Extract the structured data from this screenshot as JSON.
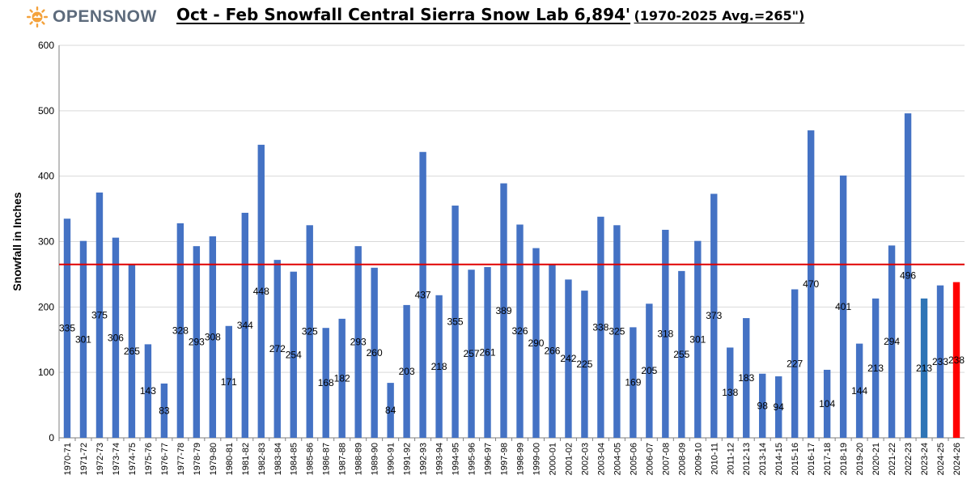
{
  "header": {
    "logo_text": "OPENSNOW",
    "title_main": "Oct - Feb Snowfall Central Sierra Snow Lab 6,894'",
    "title_sub": "(1970-2025 Avg.=265\")"
  },
  "colors": {
    "bar": "#4472c4",
    "bar_2023_24": "#2e75b6",
    "bar_current": "#ff0000",
    "avg_line": "#e00000",
    "grid": "#d9d9d9",
    "logo_sun": "#f4a23c",
    "logo_text": "#5d6b7c"
  },
  "chart_data": {
    "type": "bar",
    "title": "Oct - Feb Snowfall Central Sierra Snow Lab 6,894' (1970-2025 Avg.=265\")",
    "xlabel": "",
    "ylabel": "Snowfall in Inches",
    "ylim": [
      0,
      600
    ],
    "yticks": [
      "0",
      "100",
      "200",
      "300",
      "400",
      "500",
      "600"
    ],
    "grid": true,
    "average": 265,
    "categories": [
      "1970-71",
      "1971-72",
      "1972-73",
      "1973-74",
      "1974-75",
      "1975-76",
      "1976-77",
      "1977-78",
      "1978-79",
      "1979-80",
      "1980-81",
      "1981-82",
      "1982-83",
      "1983-84",
      "1984-85",
      "1985-86",
      "1986-87",
      "1987-88",
      "1988-89",
      "1989-90",
      "1990-91",
      "1991-92",
      "1992-93",
      "1993-94",
      "1994-95",
      "1995-96",
      "1996-97",
      "1997-98",
      "1998-99",
      "1999-00",
      "2000-01",
      "2001-02",
      "2002-03",
      "2003-04",
      "2004-05",
      "2005-06",
      "2006-07",
      "2007-08",
      "2008-09",
      "2009-10",
      "2010-11",
      "2011-12",
      "2012-13",
      "2013-14",
      "2014-15",
      "2015-16",
      "2016-17",
      "2017-18",
      "2018-19",
      "2019-20",
      "2020-21",
      "2021-22",
      "2022-23",
      "2023-24",
      "2024-25",
      "2024-26"
    ],
    "values": [
      335,
      301,
      375,
      306,
      265,
      143,
      83,
      328,
      293,
      308,
      171,
      344,
      448,
      272,
      254,
      325,
      168,
      182,
      293,
      260,
      84,
      203,
      437,
      218,
      355,
      257,
      261,
      389,
      326,
      290,
      266,
      242,
      225,
      338,
      325,
      169,
      205,
      318,
      255,
      301,
      373,
      138,
      183,
      98,
      94,
      227,
      470,
      104,
      401,
      144,
      213,
      294,
      496,
      213,
      233,
      238
    ],
    "labels": [
      "335",
      "301",
      "375",
      "306",
      "265",
      "143",
      "83",
      "328",
      "293",
      "308",
      "171",
      "344",
      "448",
      "272",
      "254",
      "325",
      "168",
      "182",
      "293",
      "260",
      "84",
      "203",
      "437",
      "218",
      "355",
      "257",
      "261",
      "389",
      "326",
      "290",
      "266",
      "242",
      "225",
      "338",
      "325",
      "169",
      "205",
      "318",
      "255",
      "301",
      "373",
      "138",
      "183",
      "98",
      "94",
      "227",
      "470",
      "104",
      "401",
      "144",
      "213",
      "294",
      "496",
      "213",
      "233",
      "238"
    ],
    "legend": "none"
  }
}
